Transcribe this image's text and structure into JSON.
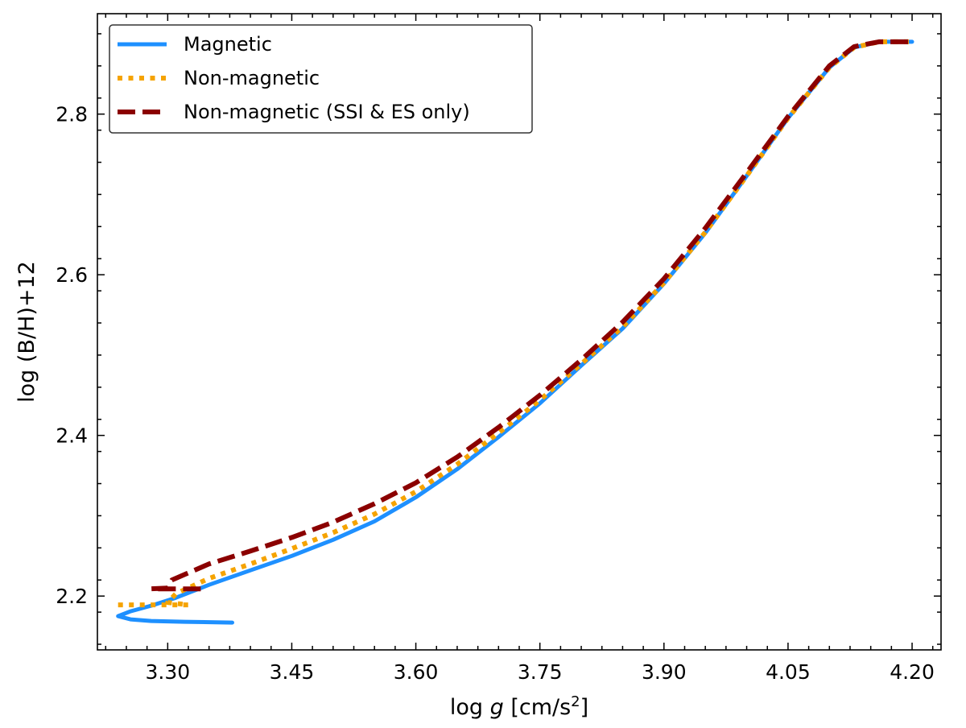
{
  "chart_data": {
    "type": "line",
    "xlabel": "log g [cm/s²]",
    "ylabel": "log (B/H)+12",
    "xlim": [
      3.215,
      4.235
    ],
    "ylim": [
      2.133,
      2.925
    ],
    "x_ticks": [
      3.3,
      3.45,
      3.6,
      3.75,
      3.9,
      4.05,
      4.2
    ],
    "x_tick_labels": [
      "3.30",
      "3.45",
      "3.60",
      "3.75",
      "3.90",
      "4.05",
      "4.20"
    ],
    "y_ticks": [
      2.2,
      2.4,
      2.6,
      2.8
    ],
    "y_tick_labels": [
      "2.2",
      "2.4",
      "2.6",
      "2.8"
    ],
    "grid": false,
    "legend_position": "top-left",
    "series": [
      {
        "name": "Magnetic",
        "color": "#1e90ff",
        "style": "solid",
        "points": [
          [
            3.378,
            2.167
          ],
          [
            3.32,
            2.168
          ],
          [
            3.28,
            2.169
          ],
          [
            3.255,
            2.171
          ],
          [
            3.24,
            2.175
          ],
          [
            3.255,
            2.181
          ],
          [
            3.28,
            2.188
          ],
          [
            3.31,
            2.198
          ],
          [
            3.35,
            2.214
          ],
          [
            3.4,
            2.232
          ],
          [
            3.45,
            2.25
          ],
          [
            3.5,
            2.27
          ],
          [
            3.55,
            2.293
          ],
          [
            3.6,
            2.323
          ],
          [
            3.65,
            2.358
          ],
          [
            3.7,
            2.398
          ],
          [
            3.75,
            2.44
          ],
          [
            3.8,
            2.487
          ],
          [
            3.85,
            2.533
          ],
          [
            3.9,
            2.589
          ],
          [
            3.95,
            2.652
          ],
          [
            4.0,
            2.723
          ],
          [
            4.05,
            2.795
          ],
          [
            4.1,
            2.858
          ],
          [
            4.13,
            2.883
          ],
          [
            4.16,
            2.89
          ],
          [
            4.2,
            2.89
          ]
        ]
      },
      {
        "name": "Non-magnetic",
        "color": "#f5a300",
        "style": "dotted",
        "points": [
          [
            3.24,
            2.189
          ],
          [
            3.28,
            2.189
          ],
          [
            3.3,
            2.189
          ],
          [
            3.325,
            2.189
          ],
          [
            3.3,
            2.192
          ],
          [
            3.31,
            2.203
          ],
          [
            3.35,
            2.222
          ],
          [
            3.4,
            2.24
          ],
          [
            3.45,
            2.259
          ],
          [
            3.5,
            2.279
          ],
          [
            3.55,
            2.302
          ],
          [
            3.6,
            2.33
          ],
          [
            3.65,
            2.364
          ],
          [
            3.7,
            2.403
          ],
          [
            3.75,
            2.444
          ],
          [
            3.8,
            2.489
          ],
          [
            3.85,
            2.535
          ],
          [
            3.9,
            2.59
          ],
          [
            3.95,
            2.653
          ],
          [
            4.0,
            2.723
          ],
          [
            4.05,
            2.795
          ],
          [
            4.1,
            2.858
          ],
          [
            4.13,
            2.883
          ],
          [
            4.16,
            2.89
          ],
          [
            4.2,
            2.89
          ]
        ]
      },
      {
        "name": "Non-magnetic (SSI & ES only)",
        "color": "#8b0000",
        "style": "dashed",
        "points": [
          [
            3.34,
            2.209
          ],
          [
            3.3,
            2.209
          ],
          [
            3.28,
            2.209
          ],
          [
            3.3,
            2.21
          ],
          [
            3.305,
            2.22
          ],
          [
            3.35,
            2.24
          ],
          [
            3.4,
            2.256
          ],
          [
            3.45,
            2.273
          ],
          [
            3.5,
            2.292
          ],
          [
            3.55,
            2.315
          ],
          [
            3.6,
            2.341
          ],
          [
            3.65,
            2.373
          ],
          [
            3.7,
            2.41
          ],
          [
            3.75,
            2.45
          ],
          [
            3.8,
            2.494
          ],
          [
            3.85,
            2.541
          ],
          [
            3.9,
            2.595
          ],
          [
            3.95,
            2.658
          ],
          [
            4.0,
            2.727
          ],
          [
            4.05,
            2.797
          ],
          [
            4.1,
            2.86
          ],
          [
            4.13,
            2.884
          ],
          [
            4.16,
            2.89
          ],
          [
            4.2,
            2.89
          ]
        ]
      }
    ]
  }
}
